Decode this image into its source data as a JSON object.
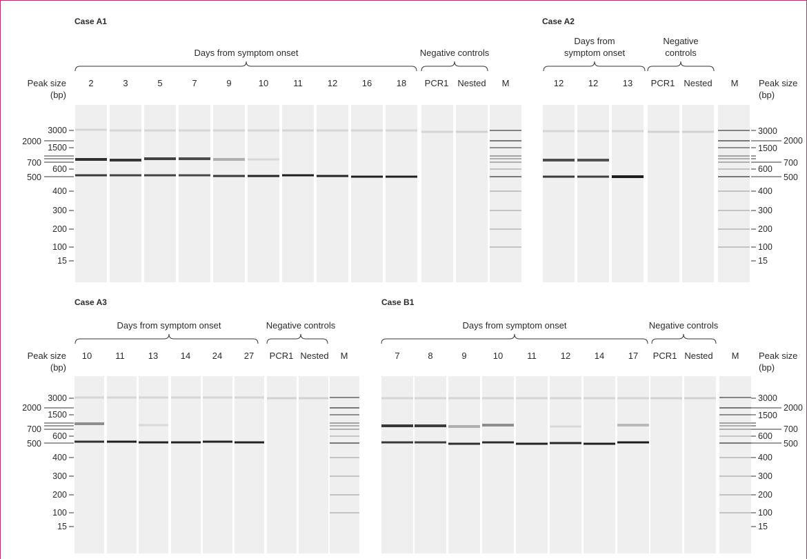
{
  "ladder_labels": [
    "3000",
    "2000",
    "1500",
    "700",
    "600",
    "500",
    "400",
    "300",
    "200",
    "100",
    "15"
  ],
  "peak_size_label": [
    "Peak size",
    "(bp)"
  ],
  "panels": [
    {
      "id": "a1",
      "title": "Case A1",
      "group_label": "Days from symptom onset",
      "control_label": "Negative controls",
      "lane_labels": [
        "2",
        "3",
        "5",
        "7",
        "9",
        "10",
        "11",
        "12",
        "16",
        "18",
        "PCR1",
        "Nested",
        "M"
      ],
      "sample_count": 10,
      "left_axis": true,
      "right_axis": false
    },
    {
      "id": "a2",
      "title": "Case A2",
      "group_label": [
        "Days from",
        "symptom onset"
      ],
      "control_label": [
        "Negative",
        "controls"
      ],
      "lane_labels": [
        "12",
        "12",
        "13",
        "PCR1",
        "Nested",
        "M"
      ],
      "sample_count": 3,
      "left_axis": false,
      "right_axis": true
    },
    {
      "id": "a3",
      "title": "Case A3",
      "group_label": "Days from symptom onset",
      "control_label": "Negative controls",
      "lane_labels": [
        "10",
        "11",
        "13",
        "14",
        "24",
        "27",
        "PCR1",
        "Nested",
        "M"
      ],
      "sample_count": 6,
      "left_axis": true,
      "right_axis": false
    },
    {
      "id": "b1",
      "title": "Case B1",
      "group_label": "Days from symptom onset",
      "control_label": "Negative controls",
      "lane_labels": [
        "7",
        "8",
        "9",
        "10",
        "11",
        "12",
        "14",
        "17",
        "PCR1",
        "Nested",
        "M"
      ],
      "sample_count": 8,
      "left_axis": false,
      "right_axis": true
    }
  ]
}
